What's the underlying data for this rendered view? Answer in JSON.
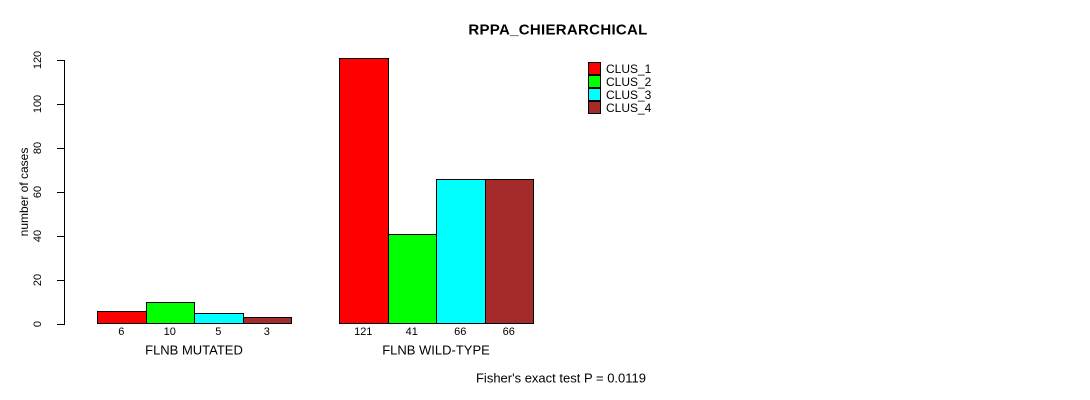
{
  "chart_data": {
    "type": "bar",
    "title": "RPPA_CHIERARCHICAL",
    "xlabel": "",
    "ylabel": "number of cases",
    "ylim": [
      0,
      120
    ],
    "yticks": [
      0,
      20,
      40,
      60,
      80,
      100,
      120
    ],
    "grid": false,
    "legend_position": "top-right",
    "categories": [
      "FLNB MUTATED",
      "FLNB WILD-TYPE"
    ],
    "series": [
      {
        "name": "CLUS_1",
        "color": "#FF0000",
        "values": [
          6,
          121
        ]
      },
      {
        "name": "CLUS_2",
        "color": "#00FF00",
        "values": [
          10,
          41
        ]
      },
      {
        "name": "CLUS_3",
        "color": "#00FFFF",
        "values": [
          5,
          66
        ]
      },
      {
        "name": "CLUS_4",
        "color": "#A52A2A",
        "values": [
          3,
          66
        ]
      }
    ],
    "bar_value_labels": [
      [
        "6",
        "121"
      ],
      [
        "10",
        "41"
      ],
      [
        "5",
        "66"
      ],
      [
        "3",
        "66"
      ]
    ],
    "annotation": "Fisher's exact test P = 0.0119"
  }
}
